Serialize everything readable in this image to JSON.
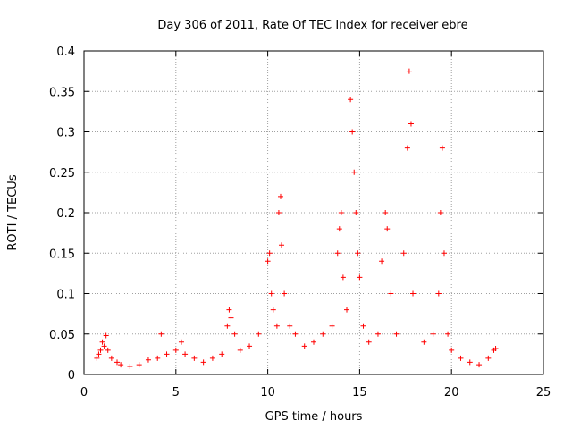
{
  "chart_data": {
    "type": "scatter",
    "title": "Day 306 of 2011, Rate Of TEC Index for receiver ebre",
    "xlabel": "GPS time / hours",
    "ylabel": "ROTI / TECUs",
    "xlim": [
      0,
      25
    ],
    "ylim": [
      0,
      0.4
    ],
    "xticks": [
      0,
      5,
      10,
      15,
      20,
      25
    ],
    "yticks": [
      0,
      0.05,
      0.1,
      0.15,
      0.2,
      0.25,
      0.3,
      0.35,
      0.4
    ],
    "xtick_labels": [
      "0",
      "5",
      "10",
      "15",
      "20",
      "25"
    ],
    "ytick_labels": [
      "0",
      "0.05",
      "0.1",
      "0.15",
      "0.2",
      "0.25",
      "0.3",
      "0.35",
      "0.4"
    ],
    "grid": true,
    "marker": "+",
    "color": "#ff0000",
    "series": [
      {
        "values": [
          [
            0.7,
            0.02
          ],
          [
            0.8,
            0.025
          ],
          [
            0.9,
            0.03
          ],
          [
            1.0,
            0.04
          ],
          [
            1.1,
            0.035
          ],
          [
            1.2,
            0.048
          ],
          [
            1.3,
            0.03
          ],
          [
            1.5,
            0.02
          ],
          [
            1.8,
            0.015
          ],
          [
            2.0,
            0.012
          ],
          [
            2.5,
            0.01
          ],
          [
            3.0,
            0.012
          ],
          [
            3.5,
            0.018
          ],
          [
            4.0,
            0.02
          ],
          [
            4.2,
            0.05
          ],
          [
            4.5,
            0.025
          ],
          [
            5.0,
            0.03
          ],
          [
            5.3,
            0.04
          ],
          [
            5.5,
            0.025
          ],
          [
            6.0,
            0.02
          ],
          [
            6.5,
            0.015
          ],
          [
            7.0,
            0.02
          ],
          [
            7.5,
            0.025
          ],
          [
            7.8,
            0.06
          ],
          [
            7.9,
            0.08
          ],
          [
            8.0,
            0.07
          ],
          [
            8.2,
            0.05
          ],
          [
            8.5,
            0.03
          ],
          [
            9.0,
            0.035
          ],
          [
            9.5,
            0.05
          ],
          [
            10.0,
            0.14
          ],
          [
            10.1,
            0.15
          ],
          [
            10.2,
            0.1
          ],
          [
            10.3,
            0.08
          ],
          [
            10.5,
            0.06
          ],
          [
            10.6,
            0.2
          ],
          [
            10.7,
            0.22
          ],
          [
            10.75,
            0.16
          ],
          [
            10.9,
            0.1
          ],
          [
            11.2,
            0.06
          ],
          [
            11.5,
            0.05
          ],
          [
            12.0,
            0.035
          ],
          [
            12.5,
            0.04
          ],
          [
            13.0,
            0.05
          ],
          [
            13.5,
            0.06
          ],
          [
            13.8,
            0.15
          ],
          [
            13.9,
            0.18
          ],
          [
            14.0,
            0.2
          ],
          [
            14.1,
            0.12
          ],
          [
            14.3,
            0.08
          ],
          [
            14.5,
            0.34
          ],
          [
            14.6,
            0.3
          ],
          [
            14.7,
            0.25
          ],
          [
            14.8,
            0.2
          ],
          [
            14.9,
            0.15
          ],
          [
            15.0,
            0.12
          ],
          [
            15.2,
            0.06
          ],
          [
            15.5,
            0.04
          ],
          [
            16.0,
            0.05
          ],
          [
            16.2,
            0.14
          ],
          [
            16.4,
            0.2
          ],
          [
            16.5,
            0.18
          ],
          [
            16.7,
            0.1
          ],
          [
            17.0,
            0.05
          ],
          [
            17.4,
            0.15
          ],
          [
            17.6,
            0.28
          ],
          [
            17.7,
            0.375
          ],
          [
            17.8,
            0.31
          ],
          [
            17.9,
            0.1
          ],
          [
            18.5,
            0.04
          ],
          [
            19.0,
            0.05
          ],
          [
            19.3,
            0.1
          ],
          [
            19.4,
            0.2
          ],
          [
            19.5,
            0.28
          ],
          [
            19.6,
            0.15
          ],
          [
            19.8,
            0.05
          ],
          [
            20.0,
            0.03
          ],
          [
            20.5,
            0.02
          ],
          [
            21.0,
            0.015
          ],
          [
            21.5,
            0.012
          ],
          [
            22.0,
            0.02
          ],
          [
            22.3,
            0.03
          ],
          [
            22.4,
            0.032
          ]
        ]
      }
    ]
  }
}
